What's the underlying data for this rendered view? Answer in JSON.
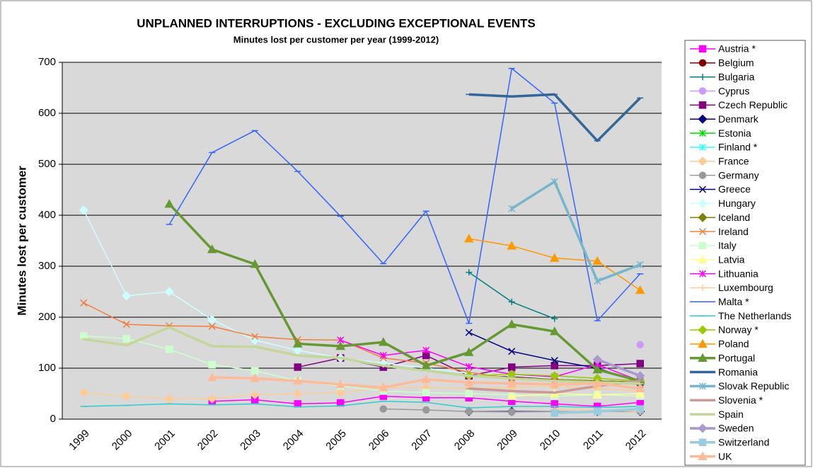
{
  "chart_data": {
    "type": "line",
    "title": "UNPLANNED INTERRUPTIONS - EXCLUDING EXCEPTIONAL EVENTS",
    "subtitle": "Minutes lost per customer  per year (1999-2012)",
    "y_label": "Minutes lost per customer",
    "categories": [
      "1999",
      "2000",
      "2001",
      "2002",
      "2003",
      "2004",
      "2005",
      "2006",
      "2007",
      "2008",
      "2009",
      "2010",
      "2011",
      "2012"
    ],
    "ylim": [
      0,
      700
    ],
    "yticks": [
      0,
      100,
      200,
      300,
      400,
      500,
      600,
      700
    ],
    "grid": true,
    "legend": "right",
    "series": [
      {
        "name": "Austria *",
        "color": "#ff00ff",
        "marker": "square",
        "values": [
          null,
          null,
          null,
          35,
          38,
          30,
          32,
          45,
          42,
          42,
          35,
          30,
          25,
          33
        ]
      },
      {
        "name": "Belgium",
        "color": "#800000",
        "marker": "circle",
        "values": [
          null,
          null,
          null,
          null,
          null,
          null,
          null,
          null,
          null,
          85,
          83,
          80,
          75,
          73
        ]
      },
      {
        "name": "Bulgaria",
        "color": "#008080",
        "marker": "plus",
        "values": [
          null,
          null,
          null,
          null,
          null,
          null,
          null,
          null,
          null,
          288,
          230,
          197,
          null,
          null
        ]
      },
      {
        "name": "Cyprus",
        "color": "#cc99ff",
        "marker": "circle",
        "values": [
          null,
          null,
          null,
          null,
          null,
          null,
          null,
          null,
          null,
          null,
          null,
          null,
          null,
          146
        ]
      },
      {
        "name": "Czech Republic",
        "color": "#800080",
        "marker": "square",
        "values": [
          null,
          null,
          null,
          null,
          null,
          102,
          120,
          102,
          125,
          85,
          102,
          105,
          105,
          109
        ]
      },
      {
        "name": "Denmark",
        "color": "#000080",
        "marker": "diamond",
        "values": [
          null,
          null,
          null,
          null,
          null,
          null,
          null,
          null,
          null,
          15,
          15,
          15,
          15,
          15
        ]
      },
      {
        "name": "Estonia",
        "color": "#00dd00",
        "marker": "asterisk",
        "values": [
          null,
          null,
          null,
          null,
          null,
          null,
          null,
          null,
          null,
          null,
          null,
          null,
          null,
          75
        ]
      },
      {
        "name": "Finland *",
        "color": "#33ffff",
        "marker": "asterisk",
        "values": [
          null,
          null,
          null,
          null,
          null,
          null,
          null,
          null,
          null,
          null,
          null,
          null,
          75,
          72
        ]
      },
      {
        "name": "France",
        "color": "#ffcc99",
        "marker": "diamond",
        "values": [
          52,
          45,
          40,
          40,
          48,
          50,
          52,
          62,
          62,
          60,
          62,
          65,
          60,
          55
        ]
      },
      {
        "name": "Germany",
        "color": "#999999",
        "marker": "circle",
        "values": [
          null,
          null,
          null,
          null,
          null,
          null,
          null,
          20,
          18,
          15,
          14,
          15,
          15,
          15
        ]
      },
      {
        "name": "Greece",
        "color": "#000080",
        "marker": "x",
        "values": [
          null,
          null,
          null,
          null,
          null,
          null,
          null,
          null,
          null,
          170,
          133,
          115,
          100,
          72
        ]
      },
      {
        "name": "Hungary",
        "color": "#ccffff",
        "marker": "diamond",
        "values": [
          410,
          242,
          250,
          195,
          155,
          135,
          120,
          110,
          100,
          90,
          85,
          80,
          75,
          72
        ]
      },
      {
        "name": "Iceland",
        "color": "#808000",
        "marker": "diamond",
        "values": [
          null,
          null,
          null,
          null,
          null,
          null,
          null,
          null,
          null,
          null,
          80,
          78,
          75,
          72
        ]
      },
      {
        "name": "Ireland",
        "color": "#f08040",
        "marker": "x",
        "values": [
          228,
          186,
          183,
          182,
          162,
          156,
          155,
          120,
          110,
          92,
          80,
          75,
          72,
          68
        ]
      },
      {
        "name": "Italy",
        "color": "#ccffcc",
        "marker": "square",
        "values": [
          163,
          158,
          137,
          107,
          95,
          75,
          65,
          55,
          52,
          50,
          48,
          45,
          48,
          45
        ]
      },
      {
        "name": "Latvia",
        "color": "#ffff99",
        "marker": "triangle",
        "values": [
          null,
          null,
          null,
          null,
          null,
          null,
          null,
          null,
          null,
          null,
          45,
          50,
          48,
          50
        ]
      },
      {
        "name": "Lithuania",
        "color": "#ff00ff",
        "marker": "asterisk",
        "values": [
          null,
          null,
          null,
          null,
          null,
          null,
          155,
          125,
          135,
          103,
          88,
          83,
          107,
          75
        ]
      },
      {
        "name": "Luxembourg",
        "color": "#ffcc99",
        "marker": "plus",
        "values": [
          null,
          null,
          null,
          null,
          null,
          null,
          null,
          null,
          null,
          null,
          null,
          20,
          18,
          15
        ]
      },
      {
        "name": "Malta *",
        "color": "#3366ff",
        "marker": "dash",
        "values": [
          null,
          null,
          382,
          523,
          566,
          486,
          398,
          305,
          408,
          188,
          688,
          620,
          193,
          285
        ]
      },
      {
        "name": "The Netherlands",
        "color": "#33cccc",
        "marker": "dash",
        "values": [
          25,
          27,
          30,
          28,
          30,
          24,
          26,
          35,
          33,
          22,
          25,
          25,
          23,
          25
        ]
      },
      {
        "name": "Norway *",
        "color": "#99cc00",
        "marker": "diamond",
        "values": [
          null,
          null,
          null,
          null,
          null,
          null,
          null,
          null,
          null,
          85,
          88,
          85,
          80,
          75
        ]
      },
      {
        "name": "Poland",
        "color": "#ff9900",
        "marker": "triangle",
        "values": [
          null,
          null,
          null,
          null,
          null,
          null,
          null,
          null,
          null,
          354,
          340,
          316,
          310,
          253
        ]
      },
      {
        "name": "Portugal",
        "color": "#669933",
        "marker": "triangle",
        "thick": true,
        "values": [
          null,
          null,
          422,
          333,
          304,
          148,
          143,
          151,
          105,
          131,
          186,
          172,
          97,
          75
        ]
      },
      {
        "name": "Romania",
        "color": "#336699",
        "marker": "dash",
        "thick": true,
        "values": [
          null,
          null,
          null,
          null,
          null,
          null,
          null,
          null,
          null,
          637,
          633,
          637,
          546,
          630
        ]
      },
      {
        "name": "Slovak Republic",
        "color": "#77b5cc",
        "marker": "asterisk",
        "thick": true,
        "values": [
          null,
          null,
          null,
          null,
          null,
          null,
          null,
          null,
          null,
          null,
          413,
          466,
          271,
          303
        ]
      },
      {
        "name": "Slovenia *",
        "color": "#cc9999",
        "marker": "dash",
        "thick": true,
        "values": [
          null,
          null,
          null,
          null,
          null,
          null,
          null,
          null,
          null,
          60,
          55,
          52,
          65,
          75
        ]
      },
      {
        "name": "Spain",
        "color": "#c4d79b",
        "marker": "dash",
        "thick": true,
        "values": [
          157,
          145,
          180,
          143,
          142,
          125,
          120,
          105,
          95,
          85,
          80,
          75,
          72,
          70
        ]
      },
      {
        "name": "Sweden",
        "color": "#aa99cc",
        "marker": "diamond",
        "thick": true,
        "values": [
          null,
          null,
          null,
          null,
          null,
          null,
          null,
          null,
          null,
          null,
          null,
          null,
          117,
          85
        ]
      },
      {
        "name": "Switzerland",
        "color": "#99ccdd",
        "marker": "square",
        "thick": true,
        "values": [
          null,
          null,
          null,
          null,
          null,
          null,
          null,
          null,
          null,
          null,
          null,
          12,
          15,
          20
        ]
      },
      {
        "name": "UK",
        "color": "#ffbb99",
        "marker": "triangle",
        "thick": true,
        "values": [
          null,
          null,
          null,
          82,
          80,
          75,
          68,
          62,
          78,
          72,
          70,
          68,
          70,
          60
        ]
      }
    ]
  }
}
